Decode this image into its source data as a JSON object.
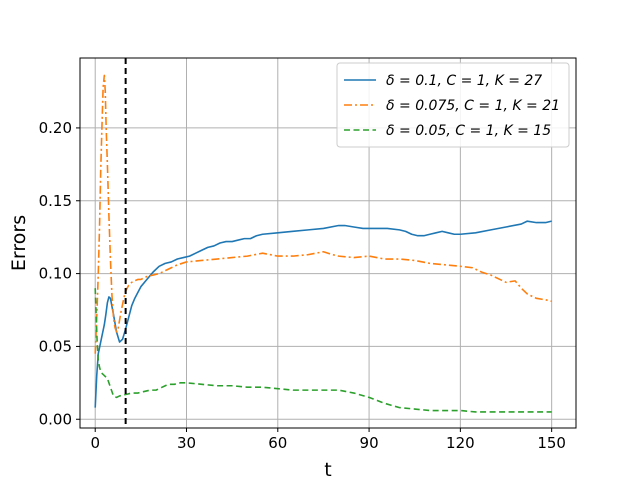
{
  "chart_data": {
    "type": "line",
    "xlabel": "t",
    "ylabel": "Errors",
    "xlim": [
      -5,
      158
    ],
    "ylim": [
      -0.006,
      0.248
    ],
    "x_ticks": [
      0,
      30,
      60,
      90,
      120,
      150
    ],
    "y_ticks": [
      0.0,
      0.05,
      0.1,
      0.15,
      0.2
    ],
    "x_tick_labels": [
      "0",
      "30",
      "60",
      "90",
      "120",
      "150"
    ],
    "y_tick_labels": [
      "0.00",
      "0.05",
      "0.10",
      "0.15",
      "0.20"
    ],
    "grid": true,
    "legend_position": "top-right",
    "vline": {
      "x": 10,
      "style": "dashed",
      "color": "#000000"
    },
    "series": [
      {
        "name": "δ = 0.1, C = 1, K = 27",
        "color": "#1f77b4",
        "dash": "solid",
        "x": [
          0,
          0.5,
          1,
          1.5,
          2,
          2.5,
          3,
          3.5,
          4,
          4.5,
          5,
          6,
          7,
          8,
          9,
          10,
          11,
          12,
          13,
          14,
          15,
          17,
          19,
          21,
          23,
          25,
          27,
          29,
          31,
          33,
          35,
          37,
          39,
          41,
          43,
          45,
          47,
          49,
          51,
          53,
          55,
          60,
          65,
          70,
          75,
          80,
          82,
          85,
          88,
          91,
          93,
          96,
          100,
          102,
          104,
          106,
          108,
          110,
          112,
          114,
          116,
          118,
          120,
          125,
          130,
          135,
          140,
          142,
          145,
          148,
          150
        ],
        "y": [
          0.008,
          0.03,
          0.045,
          0.05,
          0.055,
          0.06,
          0.065,
          0.072,
          0.08,
          0.084,
          0.083,
          0.072,
          0.06,
          0.053,
          0.055,
          0.062,
          0.07,
          0.078,
          0.083,
          0.087,
          0.091,
          0.096,
          0.101,
          0.105,
          0.107,
          0.108,
          0.11,
          0.111,
          0.112,
          0.114,
          0.116,
          0.118,
          0.119,
          0.121,
          0.122,
          0.122,
          0.123,
          0.124,
          0.124,
          0.126,
          0.127,
          0.128,
          0.129,
          0.13,
          0.131,
          0.133,
          0.133,
          0.132,
          0.131,
          0.131,
          0.131,
          0.131,
          0.13,
          0.129,
          0.127,
          0.126,
          0.126,
          0.127,
          0.128,
          0.129,
          0.128,
          0.127,
          0.127,
          0.128,
          0.13,
          0.132,
          0.134,
          0.136,
          0.135,
          0.135,
          0.136
        ]
      },
      {
        "name": "δ = 0.075, C = 1, K = 21",
        "color": "#ff7f0e",
        "dash": "dashdot",
        "x": [
          0,
          0.3,
          0.6,
          1,
          1.4,
          1.8,
          2.2,
          2.6,
          3,
          3.3,
          3.6,
          4,
          4.5,
          5,
          5.5,
          6,
          6.5,
          7,
          7.5,
          8,
          8.5,
          9,
          9.5,
          10,
          11,
          12,
          13,
          14,
          15,
          17,
          19,
          21,
          23,
          25,
          27,
          30,
          35,
          40,
          45,
          50,
          55,
          60,
          65,
          70,
          75,
          78,
          80,
          85,
          90,
          95,
          100,
          105,
          110,
          115,
          120,
          124,
          127,
          130,
          133,
          135,
          138,
          140,
          142,
          145,
          148,
          150
        ],
        "y": [
          0.045,
          0.06,
          0.075,
          0.1,
          0.13,
          0.17,
          0.2,
          0.228,
          0.236,
          0.225,
          0.2,
          0.175,
          0.14,
          0.11,
          0.085,
          0.07,
          0.063,
          0.06,
          0.062,
          0.068,
          0.074,
          0.079,
          0.084,
          0.088,
          0.092,
          0.094,
          0.095,
          0.096,
          0.096,
          0.098,
          0.099,
          0.1,
          0.102,
          0.104,
          0.106,
          0.108,
          0.109,
          0.11,
          0.111,
          0.112,
          0.114,
          0.112,
          0.112,
          0.113,
          0.115,
          0.113,
          0.112,
          0.111,
          0.112,
          0.11,
          0.11,
          0.109,
          0.107,
          0.106,
          0.105,
          0.104,
          0.101,
          0.099,
          0.096,
          0.094,
          0.095,
          0.09,
          0.086,
          0.083,
          0.082,
          0.081
        ]
      },
      {
        "name": "δ = 0.05, C = 1, K = 15",
        "color": "#2ca02c",
        "dash": "dashed",
        "x": [
          0,
          0.3,
          0.6,
          1,
          1.5,
          2,
          3,
          4,
          5,
          6,
          7,
          8,
          10,
          12,
          14,
          16,
          18,
          20,
          22,
          24,
          26,
          28,
          30,
          35,
          40,
          45,
          50,
          55,
          60,
          65,
          70,
          75,
          80,
          85,
          90,
          95,
          100,
          105,
          110,
          115,
          120,
          125,
          130,
          135,
          140,
          145,
          150
        ],
        "y": [
          0.09,
          0.072,
          0.055,
          0.04,
          0.035,
          0.032,
          0.03,
          0.028,
          0.022,
          0.016,
          0.015,
          0.016,
          0.017,
          0.018,
          0.018,
          0.019,
          0.02,
          0.02,
          0.022,
          0.024,
          0.024,
          0.025,
          0.025,
          0.024,
          0.023,
          0.023,
          0.022,
          0.022,
          0.021,
          0.02,
          0.02,
          0.02,
          0.02,
          0.018,
          0.015,
          0.011,
          0.008,
          0.007,
          0.006,
          0.006,
          0.006,
          0.005,
          0.005,
          0.005,
          0.005,
          0.005,
          0.005
        ]
      }
    ]
  }
}
